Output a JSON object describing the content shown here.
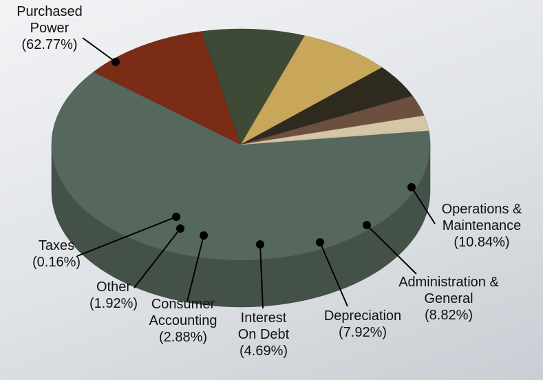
{
  "chart_data": {
    "type": "pie",
    "categories": [
      "Purchased Power",
      "Operations & Maintenance",
      "Administration & General",
      "Depreciation",
      "Interest On Debt",
      "Consumer Accounting",
      "Other",
      "Taxes"
    ],
    "values": [
      62.77,
      10.84,
      8.82,
      7.92,
      4.69,
      2.88,
      1.92,
      0.16
    ],
    "value_labels": [
      "(62.77%)",
      "(10.84%)",
      "(8.82%)",
      "(7.92%)",
      "(4.69%)",
      "(2.88%)",
      "(1.92%)",
      "(0.16%)"
    ],
    "colors": [
      "#56685d",
      "#7b2c17",
      "#3f4a36",
      "#c8a75b",
      "#2f2a1f",
      "#6d4f3f",
      "#d6c6a6",
      "#e3d8bd"
    ]
  }
}
